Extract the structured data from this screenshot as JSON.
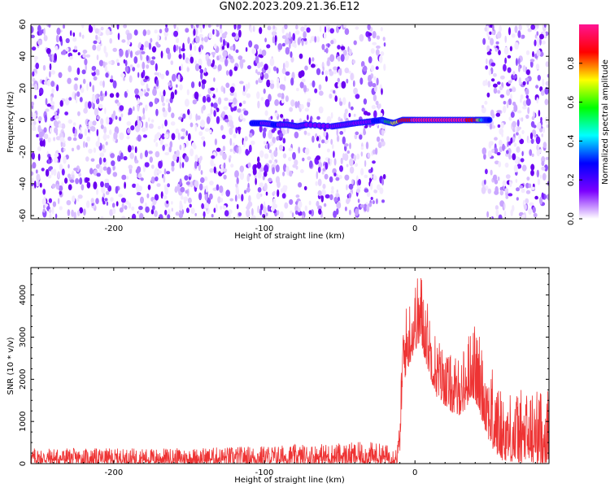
{
  "figure": {
    "title": "GN02.2023.209.21.36.E12"
  },
  "chart_data": [
    {
      "type": "heatmap",
      "xlabel": "Height of straight line (km)",
      "ylabel": "Frequency (Hz)",
      "xlim": [
        -255,
        89
      ],
      "ylim": [
        -62,
        60
      ],
      "x_ticks": [
        "-200",
        "-100",
        "0"
      ],
      "x_tick_values": [
        -200,
        -100,
        0
      ],
      "y_ticks": [
        "60",
        "40",
        "20",
        "0",
        "-20",
        "-40",
        "-60"
      ],
      "y_tick_values": [
        60,
        40,
        20,
        0,
        -20,
        -40,
        -60
      ],
      "no_data_ranges_x": [
        [
          -20,
          45
        ]
      ],
      "noise_fill_x_range": [
        -255,
        89
      ],
      "signal_trace": [
        {
          "x": -108,
          "y": -2,
          "amp": 0.25
        },
        {
          "x": -100,
          "y": -2,
          "amp": 0.2
        },
        {
          "x": -93,
          "y": -3,
          "amp": 0.22
        },
        {
          "x": -85,
          "y": -3,
          "amp": 0.2
        },
        {
          "x": -78,
          "y": -4,
          "amp": 0.15
        },
        {
          "x": -72,
          "y": -3,
          "amp": 0.12
        },
        {
          "x": -55,
          "y": -4,
          "amp": 0.12
        },
        {
          "x": -47,
          "y": -3,
          "amp": 0.12
        },
        {
          "x": -40,
          "y": -2,
          "amp": 0.15
        },
        {
          "x": -30,
          "y": -1,
          "amp": 0.18
        },
        {
          "x": -22,
          "y": 0,
          "amp": 0.3
        },
        {
          "x": -19,
          "y": -1,
          "amp": 0.5
        },
        {
          "x": -14,
          "y": -2,
          "amp": 0.7
        },
        {
          "x": -8,
          "y": 0,
          "amp": 0.85
        },
        {
          "x": 0,
          "y": 0,
          "amp": 0.95
        },
        {
          "x": 10,
          "y": 0,
          "amp": 0.95
        },
        {
          "x": 20,
          "y": 0,
          "amp": 0.95
        },
        {
          "x": 30,
          "y": 0,
          "amp": 0.95
        },
        {
          "x": 40,
          "y": 0,
          "amp": 0.9
        },
        {
          "x": 46,
          "y": 0,
          "amp": 0.4
        },
        {
          "x": 50,
          "y": 0,
          "amp": 0.2
        }
      ],
      "colorbar": {
        "label": "Normalized spectral amplitude",
        "range": [
          0,
          1
        ],
        "ticks": [
          "0.0",
          "0.2",
          "0.4",
          "0.6",
          "0.8"
        ],
        "tick_values": [
          0,
          0.2,
          0.4,
          0.6,
          0.8
        ],
        "colormap": "rainbow-white-low",
        "colors": [
          "#ffffff",
          "#7b00ff",
          "#0000ff",
          "#00ffff",
          "#00ff00",
          "#ffff00",
          "#ff0000",
          "#ff1493"
        ]
      }
    },
    {
      "type": "line",
      "xlabel": "Height of straight line (km)",
      "ylabel": "SNR (10 * v/v)",
      "xlim": [
        -255,
        89
      ],
      "ylim": [
        0,
        4650
      ],
      "x_ticks": [
        "-200",
        "-100",
        "0"
      ],
      "x_tick_values": [
        -200,
        -100,
        0
      ],
      "y_ticks": [
        "0",
        "1000",
        "2000",
        "3000",
        "4000"
      ],
      "y_tick_values": [
        0,
        1000,
        2000,
        3000,
        4000
      ],
      "grid": false,
      "series": [
        {
          "color": "#ee3333",
          "envelope": [
            {
              "x": -255,
              "low": 0,
              "high": 380
            },
            {
              "x": -200,
              "low": 0,
              "high": 360
            },
            {
              "x": -150,
              "low": 0,
              "high": 370
            },
            {
              "x": -100,
              "low": 0,
              "high": 430
            },
            {
              "x": -60,
              "low": 0,
              "high": 480
            },
            {
              "x": -30,
              "low": 0,
              "high": 520
            },
            {
              "x": -12,
              "low": 0,
              "high": 420
            },
            {
              "x": -10,
              "low": 300,
              "high": 1000
            },
            {
              "x": -8,
              "low": 1900,
              "high": 3600
            },
            {
              "x": -4,
              "low": 2300,
              "high": 3950
            },
            {
              "x": 0,
              "low": 2700,
              "high": 4350
            },
            {
              "x": 4,
              "low": 2800,
              "high": 4650
            },
            {
              "x": 8,
              "low": 2300,
              "high": 3950
            },
            {
              "x": 14,
              "low": 1600,
              "high": 3100
            },
            {
              "x": 22,
              "low": 1300,
              "high": 2650
            },
            {
              "x": 28,
              "low": 1100,
              "high": 2500
            },
            {
              "x": 34,
              "low": 1300,
              "high": 2900
            },
            {
              "x": 38,
              "low": 1600,
              "high": 3450
            },
            {
              "x": 42,
              "low": 1300,
              "high": 3100
            },
            {
              "x": 48,
              "low": 650,
              "high": 2600
            },
            {
              "x": 52,
              "low": 280,
              "high": 2200
            },
            {
              "x": 58,
              "low": 80,
              "high": 1750
            },
            {
              "x": 66,
              "low": 30,
              "high": 1750
            },
            {
              "x": 76,
              "low": 0,
              "high": 1800
            },
            {
              "x": 89,
              "low": 0,
              "high": 1800
            }
          ]
        }
      ]
    }
  ]
}
